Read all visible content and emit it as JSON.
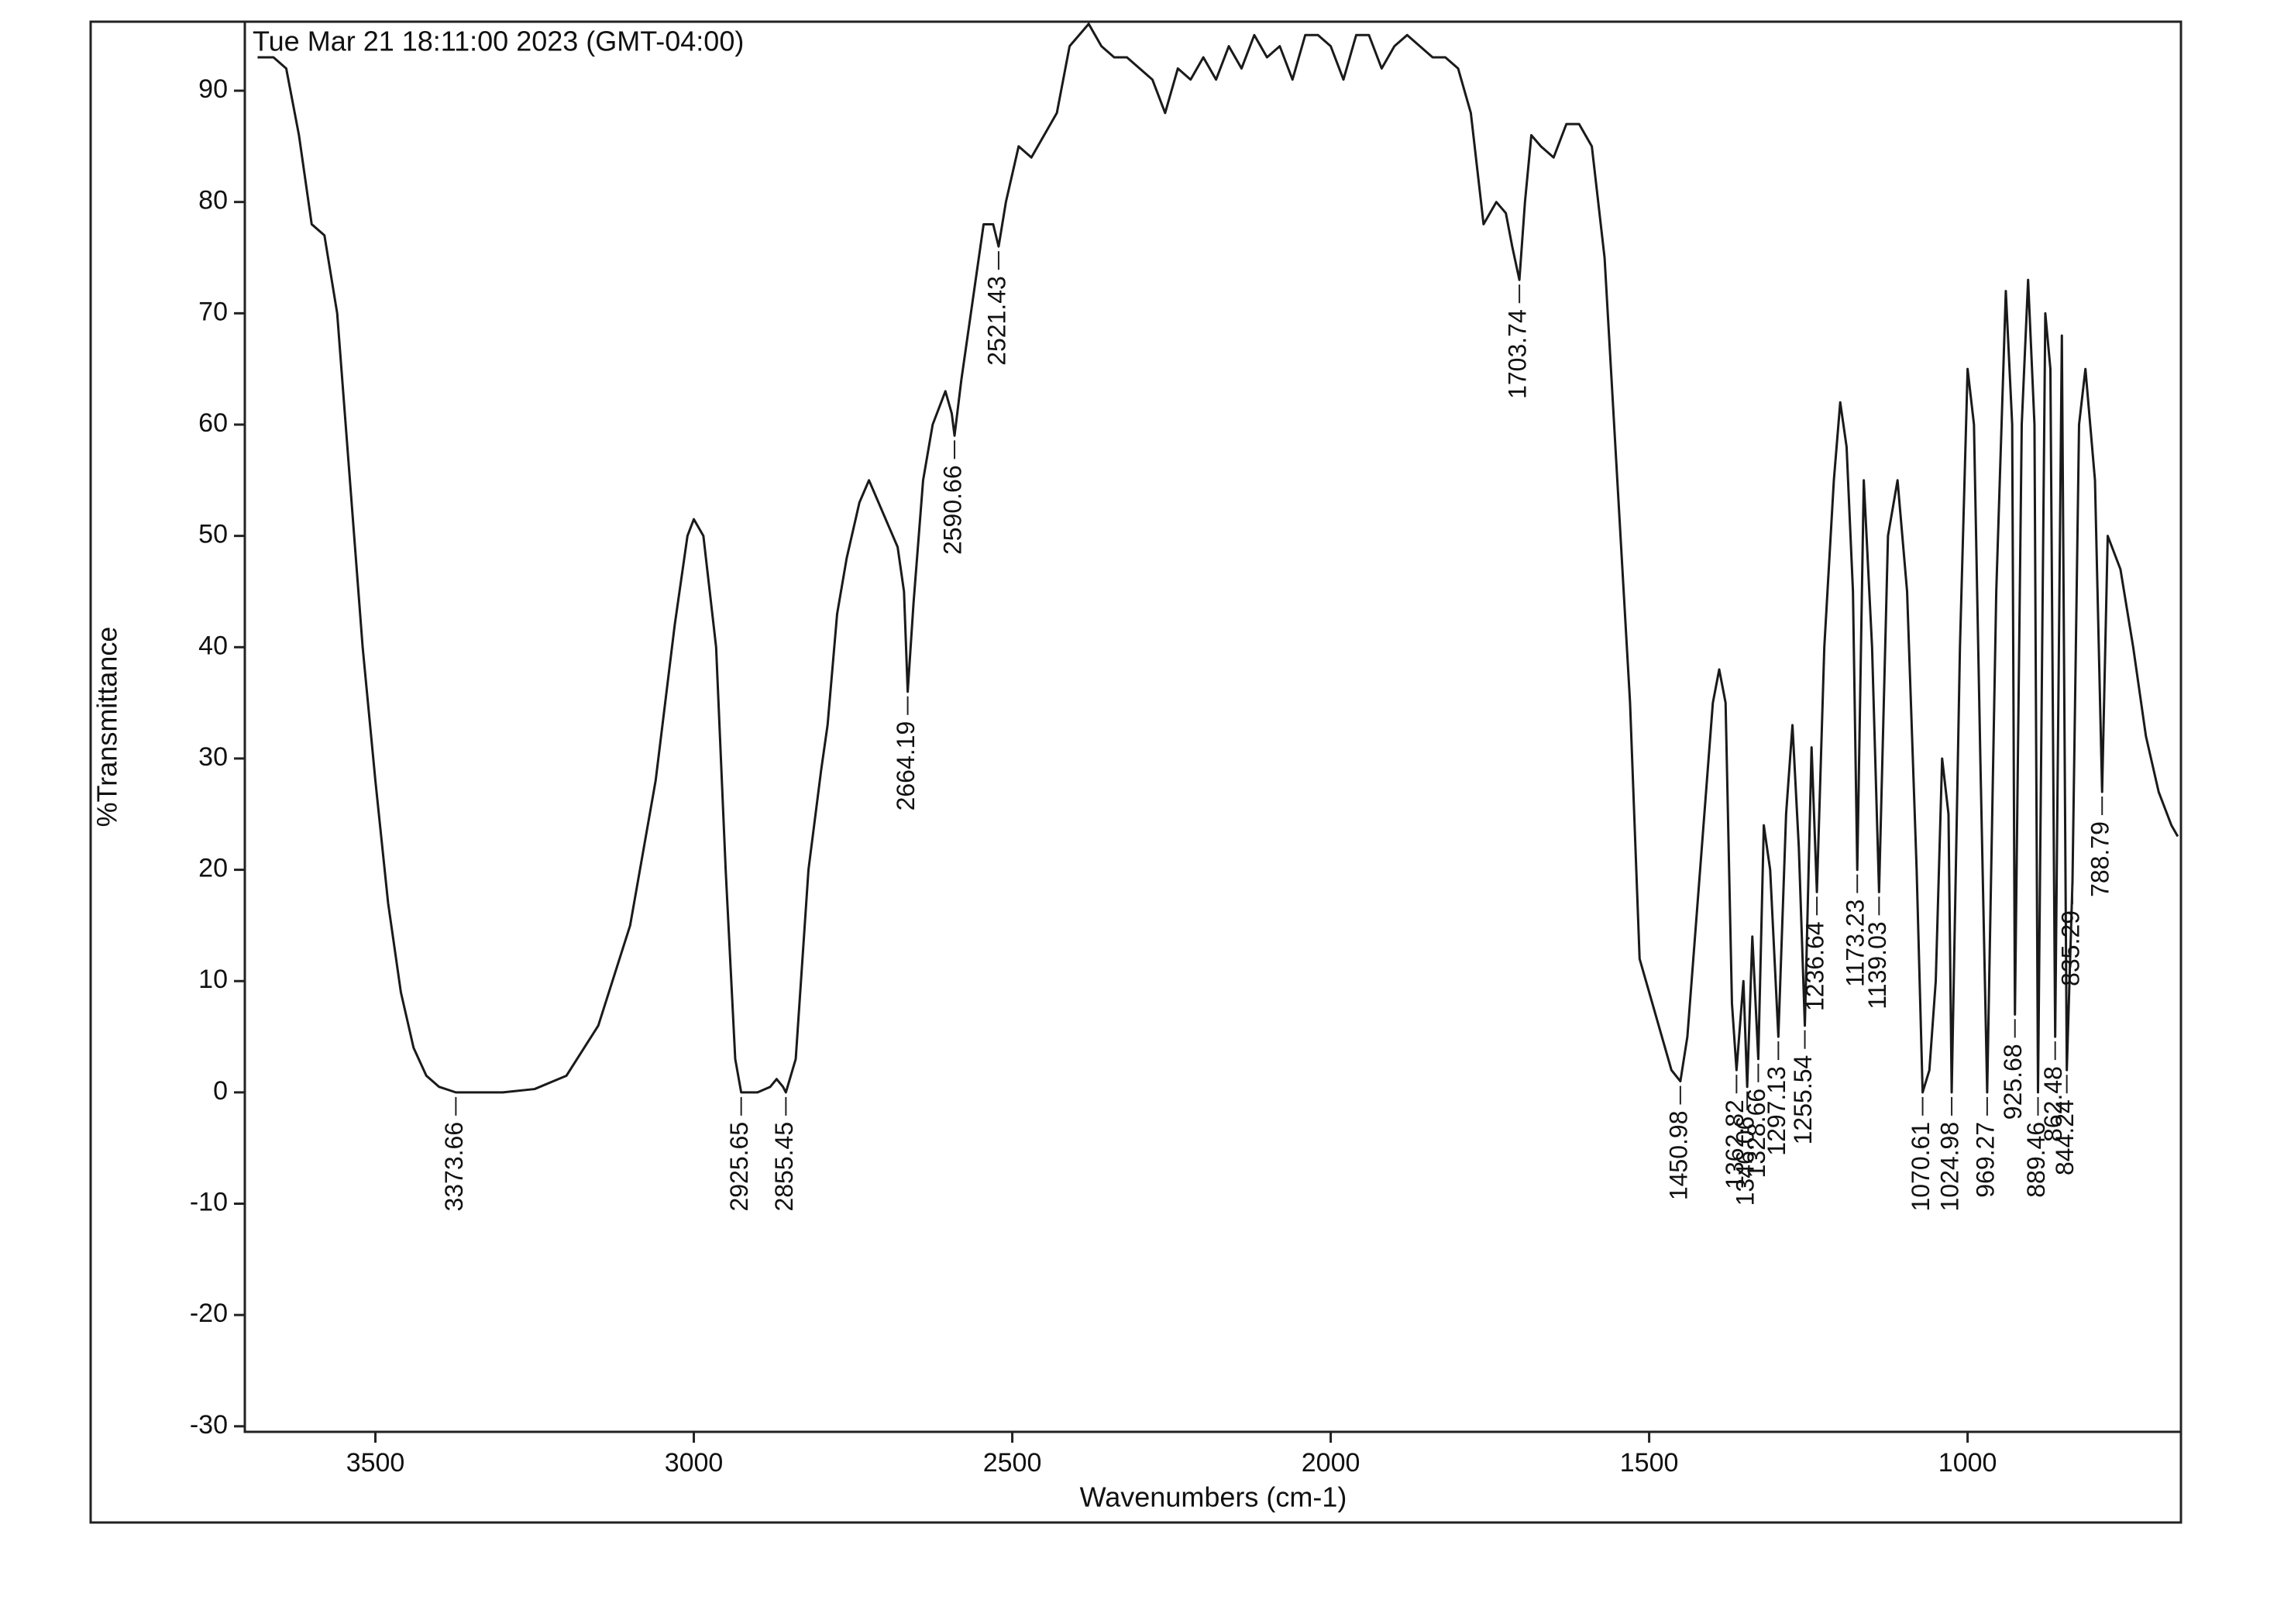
{
  "chart_data": {
    "type": "line",
    "title": "Tue Mar 21 18:11:00 2023 (GMT-04:00)",
    "xlabel": "Wavenumbers (cm-1)",
    "ylabel": "%Transmittance",
    "xlim": [
      3705,
      665
    ],
    "ylim": [
      -30.5,
      96.2
    ],
    "xticks": [
      3500,
      3000,
      2500,
      2000,
      1500,
      1000
    ],
    "yticks": [
      90,
      80,
      70,
      60,
      50,
      40,
      30,
      20,
      10,
      0,
      -10,
      -20,
      -30
    ],
    "x_reversed": true,
    "grid": false,
    "series": [
      {
        "color": "#1a1a1a",
        "x": [
          3685,
          3660,
          3640,
          3620,
          3600,
          3580,
          3560,
          3540,
          3520,
          3500,
          3480,
          3460,
          3440,
          3420,
          3400,
          3373.66,
          3300,
          3250,
          3200,
          3150,
          3100,
          3060,
          3030,
          3010,
          3000,
          2985,
          2965,
          2950,
          2935,
          2925.65,
          2900,
          2880,
          2870,
          2860,
          2855.45,
          2840,
          2820,
          2800,
          2790,
          2775,
          2760,
          2740,
          2725,
          2710,
          2695,
          2680,
          2670,
          2664.19,
          2655,
          2640,
          2625,
          2605,
          2595,
          2590.66,
          2580,
          2560,
          2545,
          2530,
          2521.43,
          2510,
          2490,
          2470,
          2450,
          2430,
          2410,
          2395,
          2380,
          2360,
          2340,
          2320,
          2300,
          2280,
          2260,
          2240,
          2220,
          2200,
          2180,
          2160,
          2140,
          2120,
          2100,
          2080,
          2060,
          2040,
          2020,
          2000,
          1980,
          1960,
          1940,
          1920,
          1900,
          1880,
          1860,
          1840,
          1820,
          1800,
          1780,
          1760,
          1740,
          1725,
          1715,
          1703.74,
          1695,
          1685,
          1670,
          1650,
          1630,
          1610,
          1590,
          1570,
          1550,
          1530,
          1515,
          1500,
          1480,
          1465,
          1450.98,
          1440,
          1420,
          1400,
          1390,
          1380,
          1370,
          1362.82,
          1352,
          1346.06,
          1338,
          1328.66,
          1320,
          1310,
          1297.13,
          1285,
          1275,
          1265,
          1255.54,
          1245,
          1236.64,
          1225,
          1210,
          1200,
          1190,
          1180,
          1173.23,
          1163,
          1150,
          1139.03,
          1125,
          1110,
          1095,
          1080,
          1070.61,
          1060,
          1050,
          1040,
          1030,
          1024.98,
          1012,
          1000,
          990,
          980,
          969.27,
          955,
          940,
          930,
          925.68,
          915,
          905,
          895,
          889.46,
          878,
          870,
          862.48,
          852,
          844.24,
          835.29,
          825,
          815,
          800,
          788.79,
          780,
          760,
          740,
          720,
          700,
          680,
          670
        ],
        "values": [
          93,
          93,
          92,
          86,
          78,
          77,
          70,
          55,
          40,
          28,
          17,
          9,
          4,
          1.5,
          0.5,
          0,
          0,
          0.3,
          1.5,
          6,
          15,
          28,
          42,
          50,
          51.5,
          50,
          40,
          20,
          3,
          0,
          0,
          0.5,
          1.2,
          0.5,
          0,
          3,
          20,
          29,
          33,
          43,
          48,
          53,
          55,
          53,
          51,
          49,
          45,
          36,
          44,
          55,
          60,
          63,
          61,
          59,
          64,
          72,
          78,
          78,
          76,
          80,
          85,
          84,
          86,
          88,
          94,
          95,
          96,
          94,
          93,
          93,
          92,
          91,
          88,
          92,
          91,
          93,
          91,
          94,
          92,
          95,
          93,
          94,
          91,
          95,
          95,
          94,
          91,
          95,
          95,
          92,
          94,
          95,
          94,
          93,
          93,
          92,
          88,
          78,
          80,
          79,
          76,
          73,
          80,
          86,
          85,
          84,
          87,
          87,
          85,
          75,
          55,
          35,
          12,
          9,
          5,
          2,
          1,
          5,
          20,
          35,
          38,
          35,
          8,
          2,
          10,
          0.5,
          14,
          3,
          24,
          20,
          5,
          25,
          33,
          22,
          6,
          31,
          18,
          40,
          55,
          62,
          58,
          45,
          20,
          55,
          40,
          18,
          50,
          55,
          45,
          20,
          0,
          2,
          10,
          30,
          25,
          0,
          40,
          65,
          60,
          30,
          0,
          45,
          72,
          60,
          7,
          60,
          73,
          60,
          0,
          70,
          65,
          5,
          68,
          2,
          19,
          60,
          65,
          55,
          27,
          50,
          47,
          40,
          32,
          27,
          24,
          23
        ]
      }
    ],
    "peaks": [
      {
        "x": 3373.66,
        "y": 0
      },
      {
        "x": 2925.65,
        "y": 0
      },
      {
        "x": 2855.45,
        "y": 0
      },
      {
        "x": 2664.19,
        "y": 36
      },
      {
        "x": 2590.66,
        "y": 59
      },
      {
        "x": 2521.43,
        "y": 76
      },
      {
        "x": 1703.74,
        "y": 73
      },
      {
        "x": 1450.98,
        "y": 1
      },
      {
        "x": 1362.82,
        "y": 2
      },
      {
        "x": 1346.06,
        "y": 0.5
      },
      {
        "x": 1328.66,
        "y": 3
      },
      {
        "x": 1297.13,
        "y": 5
      },
      {
        "x": 1255.54,
        "y": 6
      },
      {
        "x": 1236.64,
        "y": 18
      },
      {
        "x": 1173.23,
        "y": 20
      },
      {
        "x": 1139.03,
        "y": 18
      },
      {
        "x": 1070.61,
        "y": 0
      },
      {
        "x": 1024.98,
        "y": 0
      },
      {
        "x": 969.27,
        "y": 0
      },
      {
        "x": 925.68,
        "y": 7
      },
      {
        "x": 889.46,
        "y": 0
      },
      {
        "x": 862.48,
        "y": 5
      },
      {
        "x": 844.24,
        "y": 2
      },
      {
        "x": 835.29,
        "y": 19
      },
      {
        "x": 788.79,
        "y": 27
      }
    ]
  }
}
